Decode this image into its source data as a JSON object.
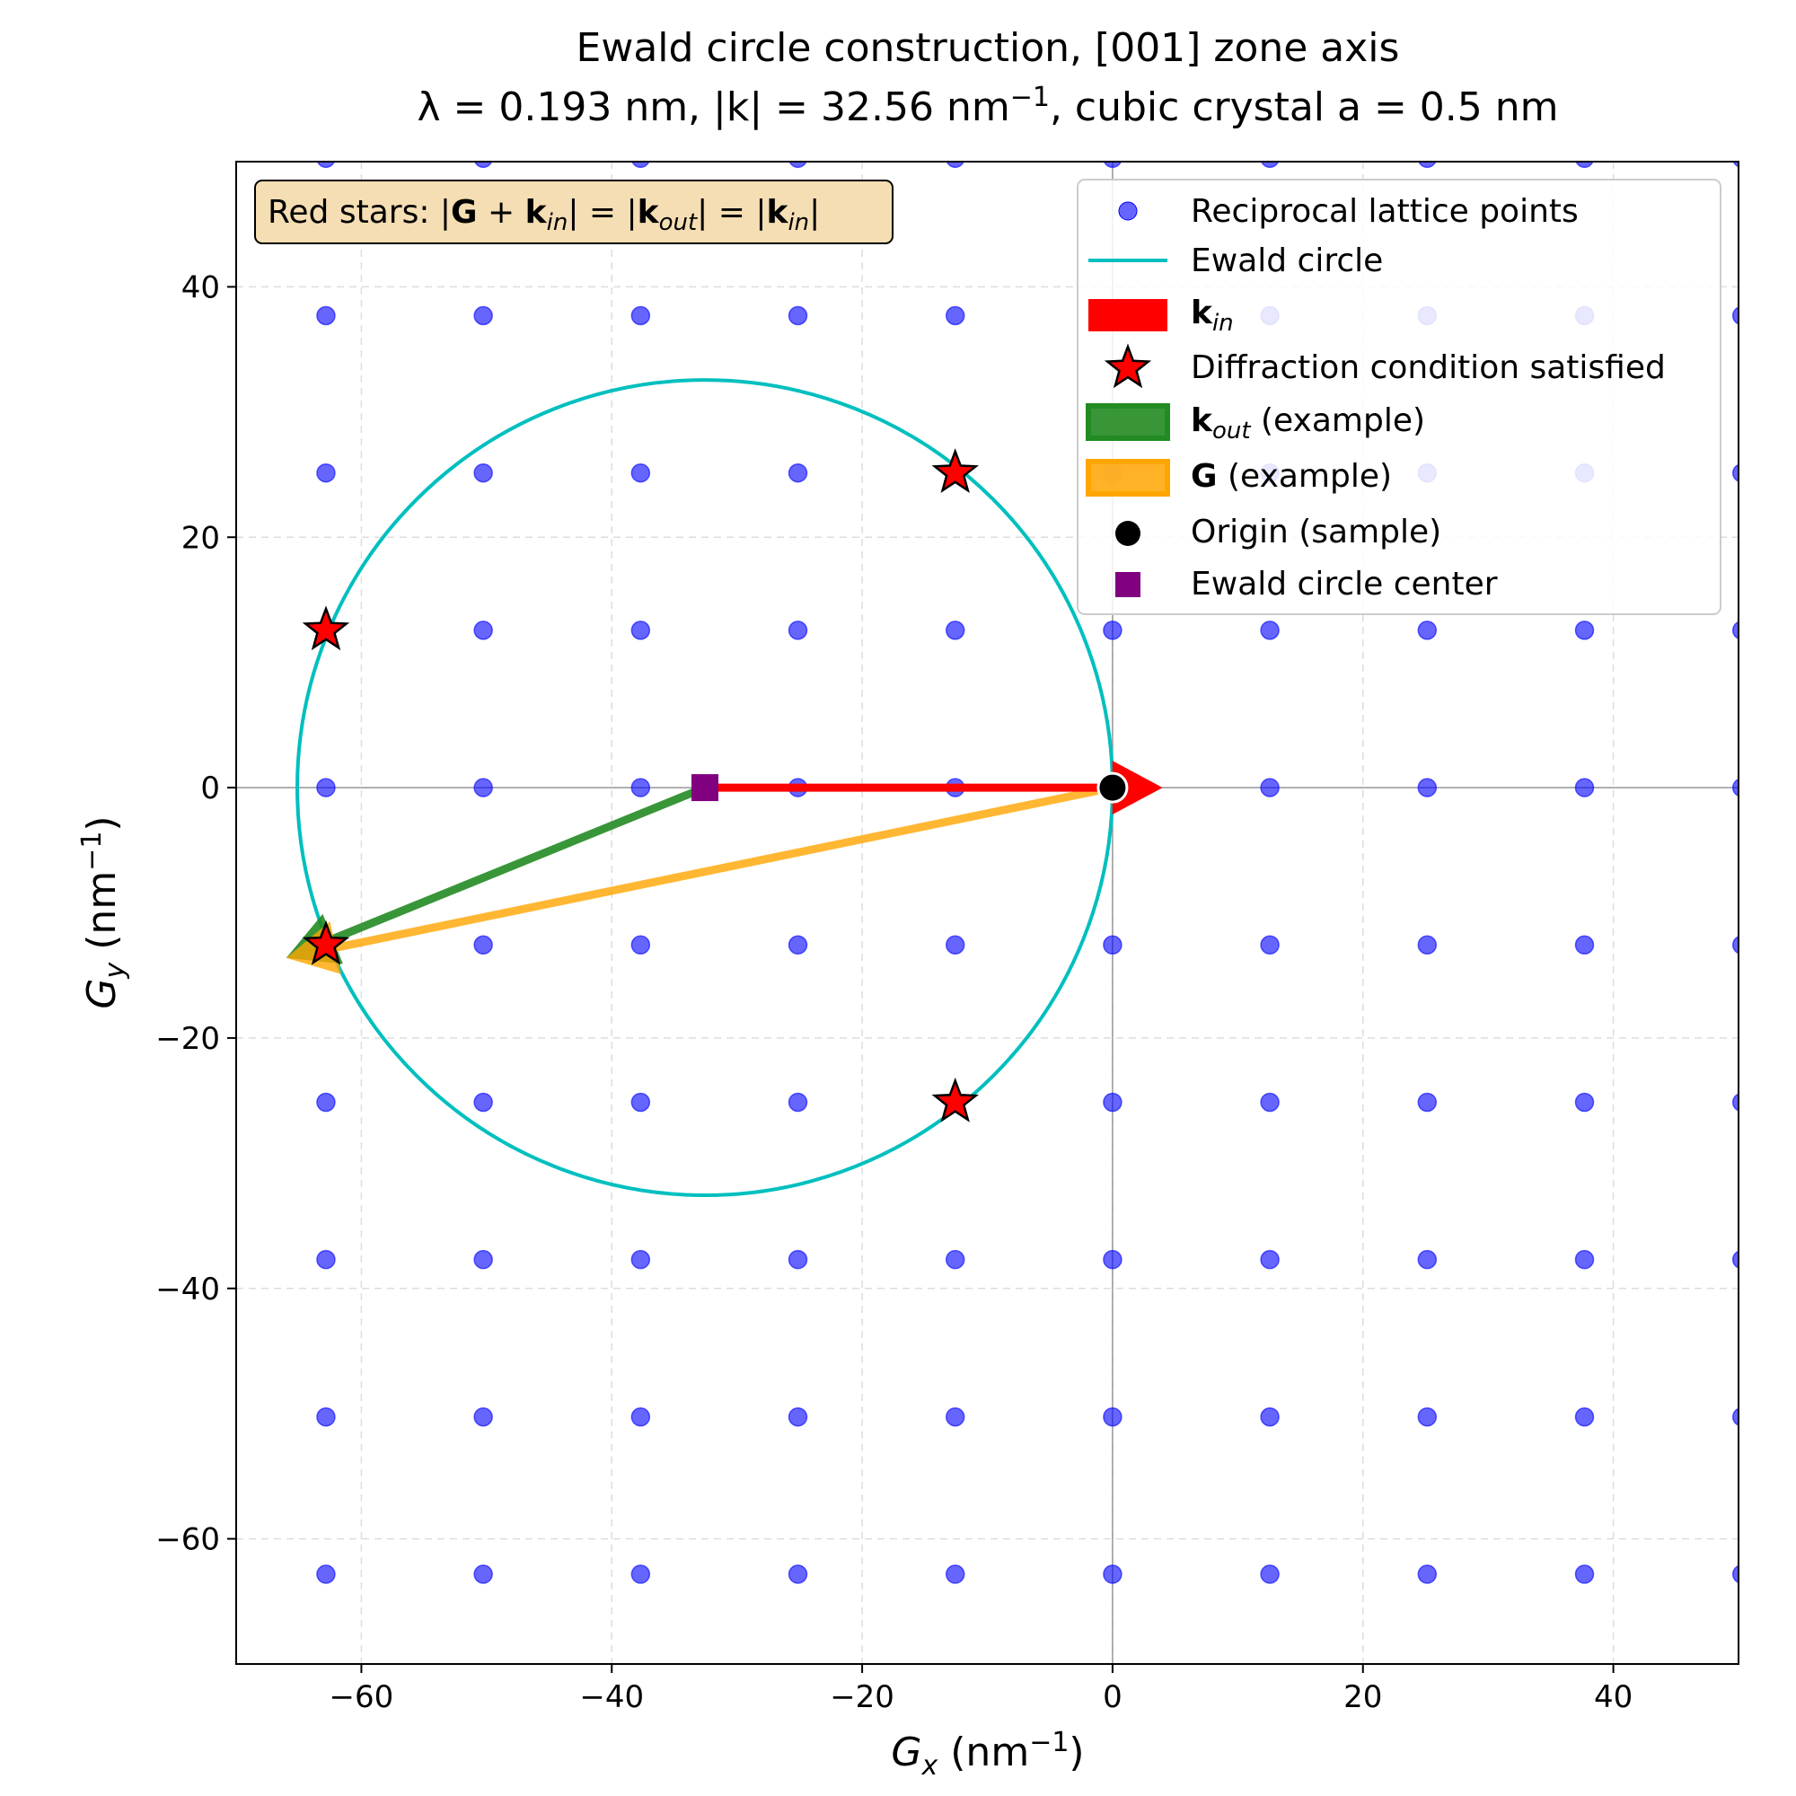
{
  "chart_data": {
    "type": "scatter",
    "title_line1": "Ewald circle construction, [001] zone axis",
    "title_line2_prefix": "λ = 0.193 nm, |k| = 32.56 nm",
    "title_line2_sup": "−1",
    "title_line2_suffix": ", cubic crystal a = 0.5 nm",
    "xlabel_var": "G",
    "xlabel_sub": "x",
    "xlabel_unit": " (nm",
    "xlabel_sup": "−1",
    "xlabel_close": ")",
    "ylabel_var": "G",
    "ylabel_sub": "y",
    "ylabel_unit": " (nm",
    "ylabel_sup": "−1",
    "ylabel_close": ")",
    "xlim": [
      -70,
      50
    ],
    "ylim": [
      -70,
      50
    ],
    "xticks": [
      -60,
      -40,
      -20,
      0,
      20,
      40
    ],
    "yticks": [
      -60,
      -40,
      -20,
      0,
      20,
      40
    ],
    "xtick_labels": [
      "−60",
      "−40",
      "−20",
      "0",
      "20",
      "40"
    ],
    "ytick_labels": [
      "−60",
      "−40",
      "−20",
      "0",
      "20",
      "40"
    ],
    "grid": true,
    "reciprocal_spacing": 12.566,
    "lattice_index_range": [
      -5,
      4
    ],
    "ewald_center": [
      -32.56,
      0
    ],
    "ewald_radius": 32.56,
    "origin": [
      0,
      0
    ],
    "k_in": {
      "from": [
        -32.56,
        0
      ],
      "to": [
        4,
        0
      ]
    },
    "k_out": {
      "from": [
        -32.56,
        0
      ],
      "to": [
        -66,
        -13.6
      ]
    },
    "G_vector": {
      "from": [
        0,
        0
      ],
      "to": [
        -66,
        -13.6
      ]
    },
    "stars": [
      [
        -12.566,
        25.133
      ],
      [
        -62.83,
        12.566
      ],
      [
        -62.83,
        -12.566
      ],
      [
        -12.566,
        -25.133
      ]
    ],
    "colors": {
      "lattice": "#0000ff",
      "ewald": "#00bfbf",
      "k_in": "#ff0000",
      "k_out": "#228b22",
      "G": "#ffa500",
      "star": "#ff0000",
      "origin": "#000000",
      "center": "#800080",
      "annotation_bg": "#f5deb3"
    },
    "annotation": {
      "prefix": "Red stars: |",
      "G": "G",
      "plus": " + ",
      "k1": "k",
      "k1_sub": "in",
      "mid1": "| = |",
      "k2": "k",
      "k2_sub": "out",
      "mid2": "| = |",
      "k3": "k",
      "k3_sub": "in",
      "suffix": "|"
    },
    "legend": {
      "position": "upper right",
      "lattice": "Reciprocal lattice points",
      "ewald": "Ewald circle",
      "k_in_bold": "k",
      "k_in_sub": "in",
      "star": "Diffraction condition satisfied",
      "k_out_bold": "k",
      "k_out_sub": "out",
      "k_out_rest": " (example)",
      "G_bold": "G",
      "G_rest": " (example)",
      "origin": "Origin (sample)",
      "center": "Ewald circle center"
    }
  }
}
